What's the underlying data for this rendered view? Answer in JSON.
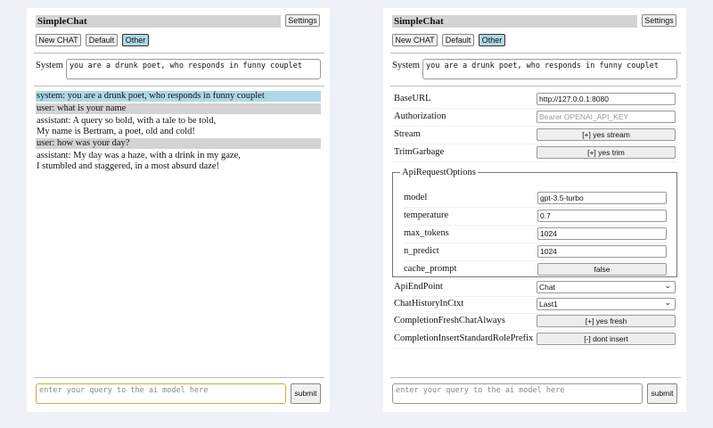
{
  "app_title": "SimpleChat",
  "settings_label": "Settings",
  "chat_buttons": {
    "new": "New CHAT",
    "default": "Default",
    "other": "Other"
  },
  "system_label": "System",
  "system_prompt": "you are a drunk poet, who responds in funny couplet",
  "messages": [
    {
      "role": "system",
      "text": "system: you are a drunk poet, who responds in funny couplet"
    },
    {
      "role": "user",
      "text": "user: what is your name"
    },
    {
      "role": "assistant",
      "line1": "assistant: A query so bold, with a tale to be told,",
      "line2": "My name is Bertram, a poet, old and cold!"
    },
    {
      "role": "user",
      "text": "user: how was your day?"
    },
    {
      "role": "assistant",
      "line1": "assistant: My day was a haze, with a drink in my gaze,",
      "line2": "I stumbled and staggered, in a most absurd daze!"
    }
  ],
  "query_placeholder": "enter your query to the ai model here",
  "submit_label": "submit",
  "settings": {
    "base_url": {
      "label": "BaseURL",
      "value": "http://127.0.0.1:8080"
    },
    "authorization": {
      "label": "Authorization",
      "placeholder": "Bearer OPENAI_API_KEY"
    },
    "stream": {
      "label": "Stream",
      "value": "[+] yes stream"
    },
    "trim_garbage": {
      "label": "TrimGarbage",
      "value": "[+] yes trim"
    },
    "api_request_options": {
      "legend": "ApiRequestOptions",
      "model": {
        "label": "model",
        "value": "gpt-3.5-turbo"
      },
      "temperature": {
        "label": "temperature",
        "value": "0.7"
      },
      "max_tokens": {
        "label": "max_tokens",
        "value": "1024"
      },
      "n_predict": {
        "label": "n_predict",
        "value": "1024"
      },
      "cache_prompt": {
        "label": "cache_prompt",
        "value": "false"
      }
    },
    "api_endpoint": {
      "label": "ApiEndPoint",
      "value": "Chat"
    },
    "chat_history": {
      "label": "ChatHistoryInCtxt",
      "value": "Last1"
    },
    "completion_fresh": {
      "label": "CompletionFreshChatAlways",
      "value": "[+] yes fresh"
    },
    "completion_insert": {
      "label": "CompletionInsertStandardRolePrefix",
      "value": "[-] dont insert"
    }
  },
  "colors": {
    "selected_button": "#add8e6",
    "system_msg": "#add8e6",
    "user_msg": "#d3d3d3",
    "focus_border": "#d9a43a"
  }
}
